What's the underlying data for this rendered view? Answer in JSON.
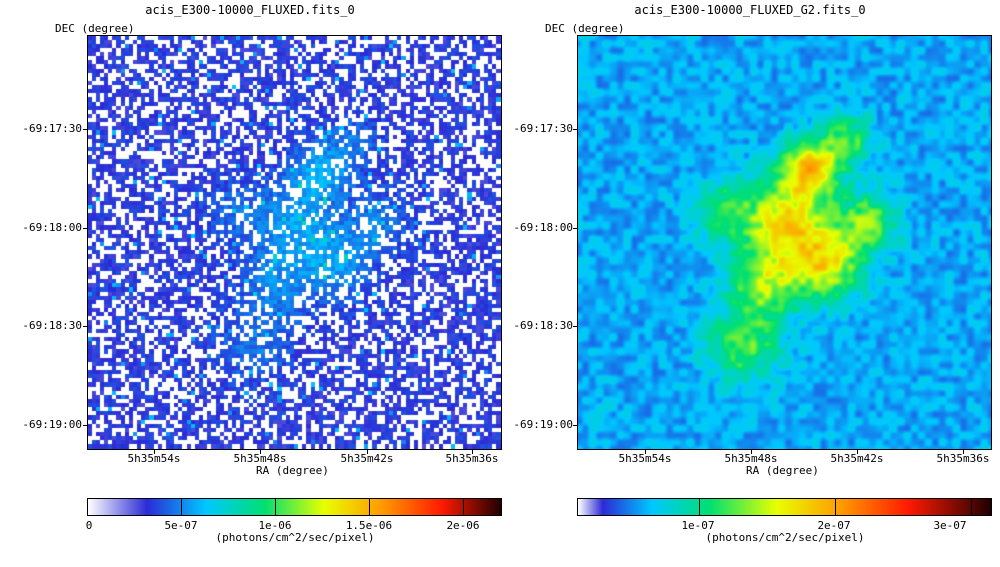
{
  "left": {
    "title": "acis_E300-10000_FLUXED.fits_0",
    "dec_label": "DEC (degree)",
    "ra_label": "RA (degree)",
    "y_ticks": [
      "-69:17:30",
      "-69:18:00",
      "-69:18:30",
      "-69:19:00"
    ],
    "x_ticks": [
      "5h35m54s",
      "5h35m48s",
      "5h35m42s",
      "5h35m36s"
    ],
    "colorbar": {
      "labels": [
        "0",
        "5e-07",
        "1e-06",
        "1.5e-06",
        "2e-06"
      ],
      "unit": "(photons/cm^2/sec/pixel)"
    }
  },
  "right": {
    "title": "acis_E300-10000_FLUXED_G2.fits_0",
    "dec_label": "DEC (degree)",
    "ra_label": "RA (degree)",
    "y_ticks": [
      "-69:17:30",
      "-69:18:00",
      "-69:18:30",
      "-69:19:00"
    ],
    "x_ticks": [
      "5h35m54s",
      "5h35m48s",
      "5h35m42s",
      "5h35m36s"
    ],
    "colorbar": {
      "labels": [
        "1e-07",
        "2e-07",
        "3e-07"
      ],
      "unit": "(photons/cm^2/sec/pixel)"
    }
  },
  "colormap": [
    "#ffffff",
    "#2b2bd6",
    "#00c8ff",
    "#00e070",
    "#e8ff00",
    "#ff9800",
    "#ff1a00",
    "#200000"
  ]
}
